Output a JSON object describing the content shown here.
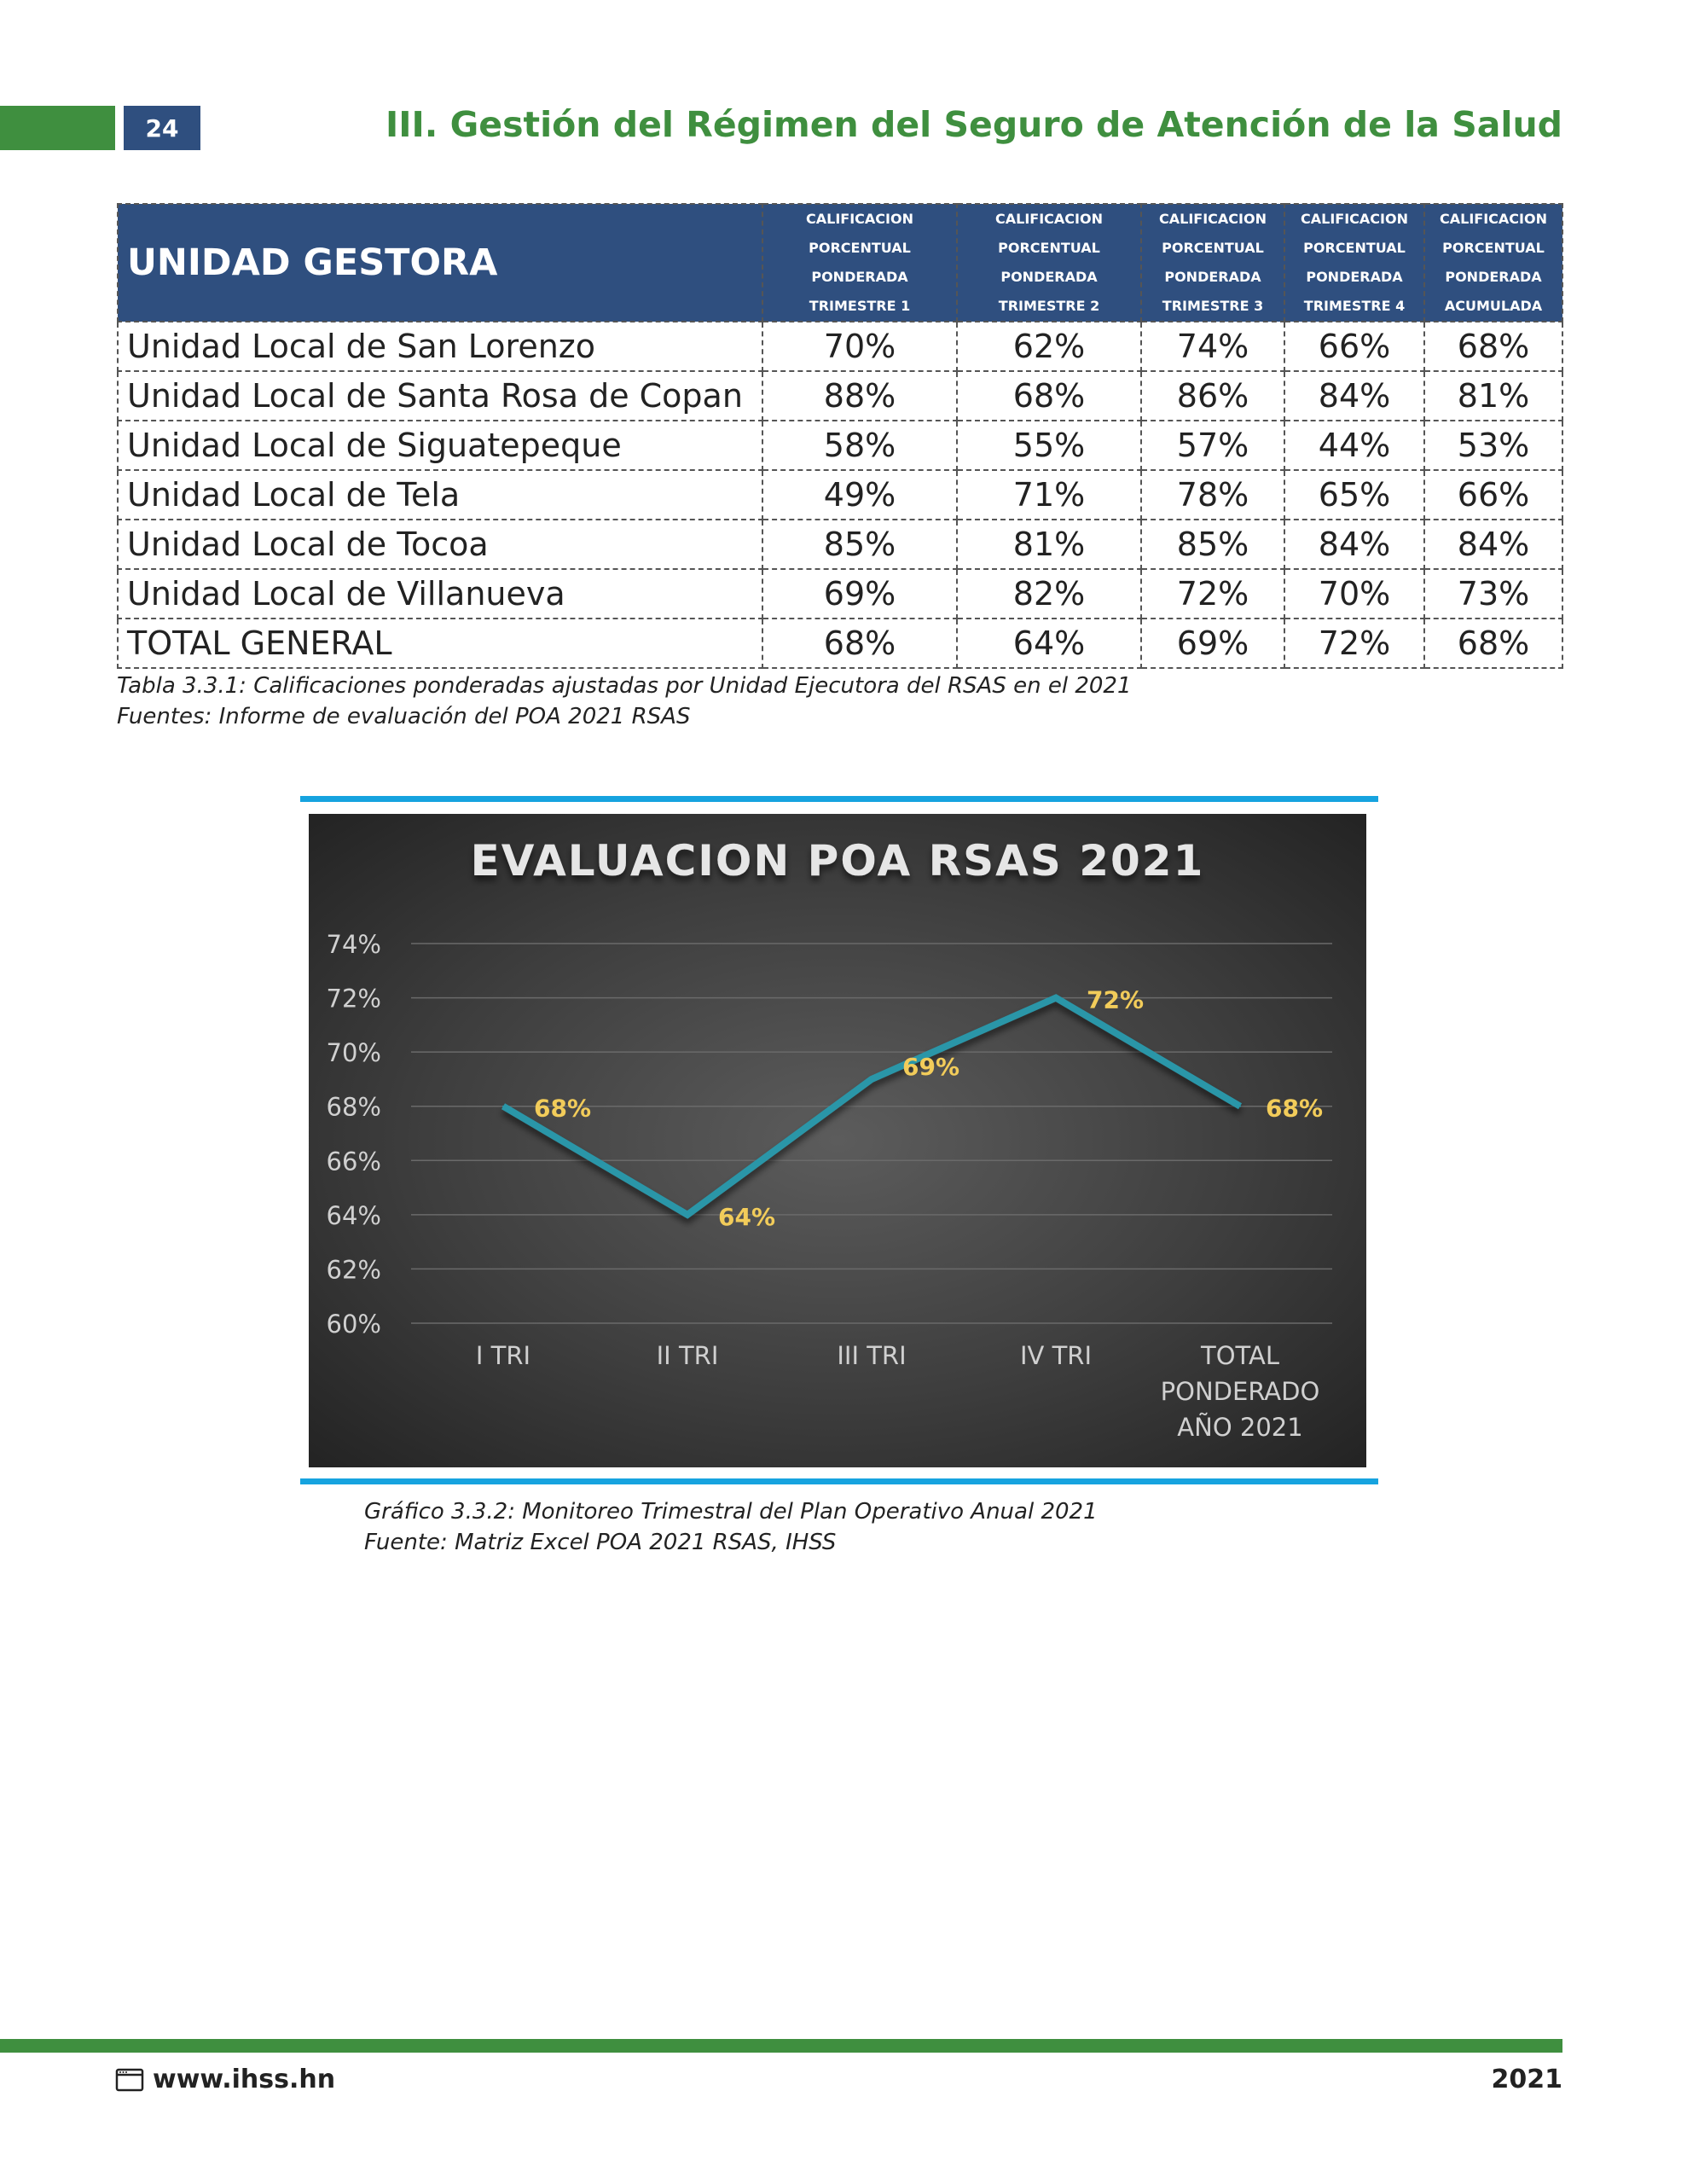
{
  "header": {
    "page_number": "24",
    "section_title": "III. Gestión del Régimen del Seguro de Atención de la Salud"
  },
  "table": {
    "unit_header": "UNIDAD GESTORA",
    "column_headers": [
      [
        "CALIFICACION",
        "PORCENTUAL",
        "PONDERADA",
        "TRIMESTRE 1"
      ],
      [
        "CALIFICACION",
        "PORCENTUAL",
        "PONDERADA",
        "TRIMESTRE 2"
      ],
      [
        "CALIFICACION",
        "PORCENTUAL",
        "PONDERADA",
        "TRIMESTRE 3"
      ],
      [
        "CALIFICACION",
        "PORCENTUAL",
        "PONDERADA",
        "TRIMESTRE 4"
      ],
      [
        "CALIFICACION",
        "PORCENTUAL",
        "PONDERADA",
        "ACUMULADA"
      ]
    ],
    "rows": [
      {
        "unit": "Unidad Local de San Lorenzo",
        "values": [
          "70%",
          "62%",
          "74%",
          "66%",
          "68%"
        ]
      },
      {
        "unit": "Unidad Local de Santa Rosa de Copan",
        "values": [
          "88%",
          "68%",
          "86%",
          "84%",
          "81%"
        ]
      },
      {
        "unit": "Unidad Local de Siguatepeque",
        "values": [
          "58%",
          "55%",
          "57%",
          "44%",
          "53%"
        ]
      },
      {
        "unit": "Unidad Local de Tela",
        "values": [
          "49%",
          "71%",
          "78%",
          "65%",
          "66%"
        ]
      },
      {
        "unit": "Unidad Local de Tocoa",
        "values": [
          "85%",
          "81%",
          "85%",
          "84%",
          "84%"
        ]
      },
      {
        "unit": "Unidad Local de Villanueva",
        "values": [
          "69%",
          "82%",
          "72%",
          "70%",
          "73%"
        ]
      },
      {
        "unit": "TOTAL GENERAL",
        "values": [
          "68%",
          "64%",
          "69%",
          "72%",
          "68%"
        ]
      }
    ],
    "caption_line1": "Tabla 3.3.1: Calificaciones ponderadas ajustadas por Unidad Ejecutora del RSAS en el 2021",
    "caption_line2": "Fuentes: Informe de evaluación del POA 2021 RSAS"
  },
  "chart_data": {
    "type": "line",
    "title": "EVALUACION POA RSAS 2021",
    "categories": [
      [
        "I TRI"
      ],
      [
        "II TRI"
      ],
      [
        "III TRI"
      ],
      [
        "IV TRI"
      ],
      [
        "TOTAL",
        "PONDERADO",
        "AÑO  2021"
      ]
    ],
    "series": [
      {
        "values": [
          68,
          64,
          69,
          72,
          68
        ]
      }
    ],
    "data_labels": [
      "68%",
      "64%",
      "69%",
      "72%",
      "68%"
    ],
    "y_ticks": [
      "60%",
      "62%",
      "64%",
      "66%",
      "68%",
      "70%",
      "72%",
      "74%"
    ],
    "ylim": [
      60,
      74
    ],
    "grid": true,
    "colors": {
      "line": "#2a96a8",
      "label": "#f2cc5a",
      "axis_text": "#d0d0d0",
      "title": "#e6e6e6",
      "grid": "#6a6a6a"
    }
  },
  "chart_caption": {
    "line1": "Gráfico 3.3.2: Monitoreo Trimestral del Plan Operativo Anual 2021",
    "line2": "Fuente: Matriz Excel POA 2021 RSAS, IHSS"
  },
  "footer": {
    "url": "www.ihss.hn",
    "icon": "browser-window-icon",
    "year": "2021"
  }
}
